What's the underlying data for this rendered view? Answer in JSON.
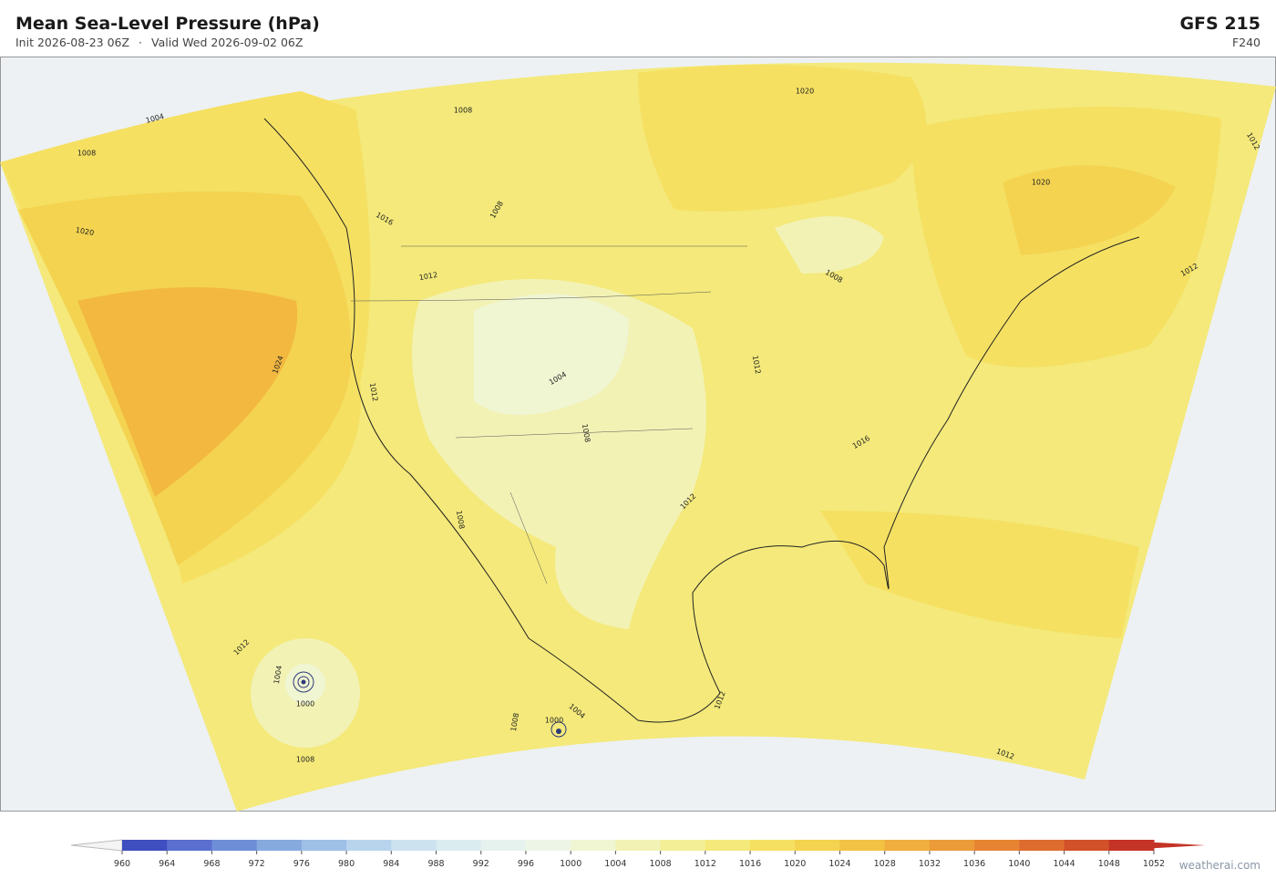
{
  "header": {
    "title": "Mean Sea-Level Pressure  (hPa)",
    "init": "Init 2026-08-23 06Z",
    "separator": "·",
    "valid": "Valid Wed 2026-09-02 06Z",
    "model": "GFS  215",
    "forecast_hour": "F240"
  },
  "map": {
    "contour_labels": [
      1004,
      1008,
      1020,
      1016,
      1012,
      1008,
      1008,
      1020,
      1020,
      1012,
      1012,
      1008,
      1012,
      1004,
      1008,
      1012,
      1016,
      1012,
      1008,
      1024,
      1012,
      1004,
      1000,
      1008,
      1008,
      1004,
      1000,
      1012,
      1012
    ]
  },
  "colorbar": {
    "ticks": [
      960,
      964,
      968,
      972,
      976,
      980,
      984,
      988,
      992,
      996,
      1000,
      1004,
      1008,
      1012,
      1016,
      1020,
      1024,
      1028,
      1032,
      1036,
      1040,
      1044,
      1048,
      1052
    ],
    "colors": [
      "#3f4fc0",
      "#5a6fd0",
      "#6f8ed8",
      "#86a9de",
      "#9fc0e6",
      "#b7d4ec",
      "#cde2ef",
      "#dbecf0",
      "#e5f2ee",
      "#edf6e6",
      "#f0f5d2",
      "#f2f2b5",
      "#f3ef96",
      "#f4e97a",
      "#f5e062",
      "#f4d350",
      "#f2c245",
      "#efae3e",
      "#ec9b39",
      "#e78433",
      "#de6c2e",
      "#d25129",
      "#c43426"
    ],
    "under_color": "#f4f4f4",
    "over_color": "#c43426"
  },
  "footer": {
    "watermark": "weatherai.com"
  }
}
